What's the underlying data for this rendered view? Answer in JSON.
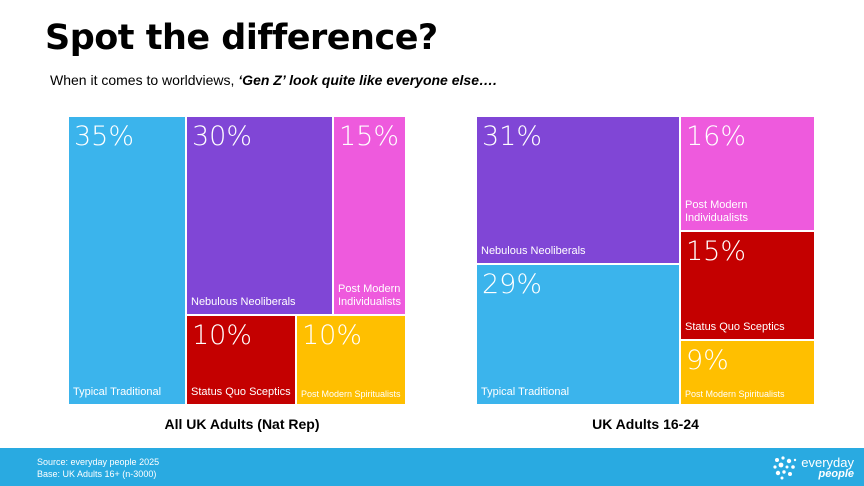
{
  "title": "Spot the difference?",
  "subtitle": {
    "prefix": "When it comes to worldviews, ",
    "emphasis": "‘Gen Z’ look quite like everyone else….",
    "suffix": ""
  },
  "footer": {
    "source": "Source: everyday people  2025",
    "base": "Base: UK Adults 16+ (n-3000)"
  },
  "logo": {
    "line1": "everyday",
    "line2": "people"
  },
  "colors": {
    "Typical Traditional": "#3bb4ec",
    "Nebulous Neoliberals": "#8046d6",
    "Post Modern Individualists": "#ee5add",
    "Status Quo Sceptics": "#c40000",
    "Post Modern Spiritualists": "#ffbf00",
    "footer": "#29aae1"
  },
  "chart_data": [
    {
      "type": "treemap",
      "label": "All UK Adults (Nat Rep)",
      "segments": [
        {
          "name": "Typical Traditional",
          "value": 35,
          "display": "35%"
        },
        {
          "name": "Nebulous Neoliberals",
          "value": 30,
          "display": "30%"
        },
        {
          "name": "Post Modern Individualists",
          "value": 15,
          "display": "15%"
        },
        {
          "name": "Status Quo Sceptics",
          "value": 10,
          "display": "10%"
        },
        {
          "name": "Post Modern Spiritualists",
          "value": 10,
          "display": "10%"
        }
      ]
    },
    {
      "type": "treemap",
      "label": "UK Adults 16-24",
      "segments": [
        {
          "name": "Nebulous Neoliberals",
          "value": 31,
          "display": "31%"
        },
        {
          "name": "Post Modern Individualists",
          "value": 16,
          "display": "16%"
        },
        {
          "name": "Typical Traditional",
          "value": 29,
          "display": "29%"
        },
        {
          "name": "Status Quo Sceptics",
          "value": 15,
          "display": "15%"
        },
        {
          "name": "Post Modern Spiritualists",
          "value": 9,
          "display": "9%"
        }
      ]
    }
  ]
}
